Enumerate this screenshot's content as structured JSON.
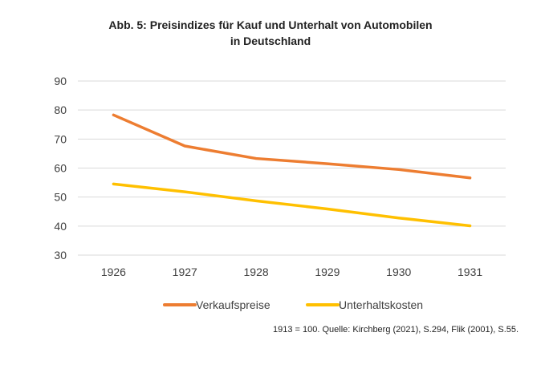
{
  "chart_data": {
    "type": "line",
    "title": "Abb. 5: Preisindizes für Kauf und Unterhalt von Automobilen",
    "subtitle": "in Deutschland",
    "x": [
      "1926",
      "1927",
      "1928",
      "1929",
      "1930",
      "1931"
    ],
    "ylim": [
      30,
      90
    ],
    "yticks": [
      "90",
      "80",
      "70",
      "60",
      "50",
      "40",
      "30"
    ],
    "grid": true,
    "legend": "bottom",
    "series": [
      {
        "name": "Verkaufspreise",
        "color": "#ED7D31",
        "values": [
          78.3,
          67.6,
          63.3,
          61.5,
          59.5,
          56.6
        ]
      },
      {
        "name": "Unterhaltskosten",
        "color": "#FFC000",
        "values": [
          54.5,
          51.8,
          48.7,
          45.9,
          42.8,
          40.1
        ]
      }
    ],
    "note": "1913 = 100. Quelle: Kirchberg (2021), S.294, Flik (2001), S.55."
  }
}
